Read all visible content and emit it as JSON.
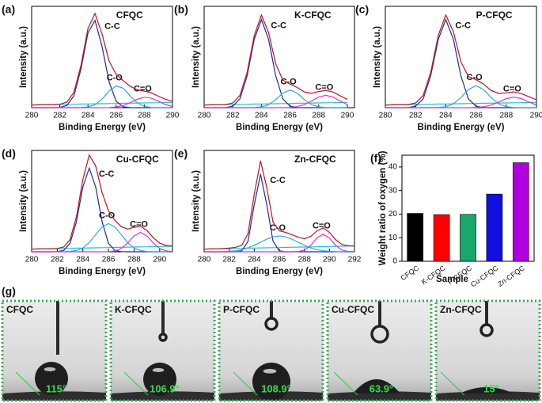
{
  "chart_data": [
    {
      "type": "line",
      "label": "(a)",
      "sample": "CFQC",
      "xlabel": "Binding Energy (eV)",
      "ylabel": "Intensity (a.u.)",
      "xlim": [
        280,
        290
      ],
      "ylim": [
        0,
        115
      ],
      "xticks": [
        280,
        282,
        284,
        286,
        288,
        290
      ],
      "x": [
        280,
        280.5,
        281,
        281.5,
        282,
        282.5,
        283,
        283.5,
        284,
        284.5,
        285,
        285.5,
        286,
        286.5,
        287,
        287.5,
        288,
        288.5,
        289,
        289.5,
        290
      ],
      "series": [
        {
          "color": "#19c3d6",
          "values": [
            3,
            3.2,
            3.3,
            3.5,
            3.6,
            3.8,
            3.9,
            4.1,
            4.2,
            4.4,
            4.5,
            4.7,
            4.8,
            5,
            5.1,
            5.3,
            5.4,
            5.6,
            5.7,
            5.9,
            6
          ]
        },
        {
          "name": "C-C",
          "color": "#1a2aa8",
          "values": [
            0,
            0,
            0,
            0,
            0.3,
            2.5,
            13.5,
            43.7,
            85,
            99,
            69.3,
            29.1,
            7.3,
            1.1,
            0.1,
            0,
            0,
            0,
            0,
            0,
            0
          ]
        },
        {
          "name": "C-O",
          "color": "#2fa8e8",
          "values": [
            0,
            0,
            0,
            0,
            0,
            0,
            0,
            0.1,
            0.8,
            3.4,
            9.7,
            18.9,
            24.8,
            22.1,
            13.3,
            5.4,
            1.5,
            0.3,
            0,
            0,
            0
          ]
        },
        {
          "name": "C=O",
          "color": "#e030d8",
          "values": [
            0,
            0,
            0,
            0,
            0,
            0,
            0,
            0,
            0,
            0,
            0,
            0.2,
            0.8,
            2.5,
            5.7,
            9.6,
            11.9,
            10.9,
            7.3,
            3.6,
            1.3
          ]
        },
        {
          "color": "#c81020",
          "values": [
            3,
            3.2,
            3.3,
            3.5,
            3.9,
            6.3,
            17.4,
            47.9,
            90,
            106.8,
            83.5,
            52.9,
            37.7,
            30.7,
            24.2,
            20.3,
            18.8,
            16.8,
            13,
            9.5,
            7.3
          ]
        }
      ]
    },
    {
      "type": "line",
      "label": "(b)",
      "sample": "K-CFQC",
      "xlabel": "Binding Energy (eV)",
      "ylabel": "Intensity (a.u.)",
      "xlim": [
        280,
        290.5
      ],
      "ylim": [
        0,
        115
      ],
      "xticks": [
        280,
        282,
        284,
        286,
        288,
        290
      ],
      "x": [
        280,
        280.5,
        281,
        281.5,
        282,
        282.5,
        283,
        283.5,
        284,
        284.5,
        285,
        285.5,
        286,
        286.5,
        287,
        287.5,
        288,
        288.5,
        289,
        289.5,
        290
      ],
      "series": [
        {
          "color": "#19c3d6",
          "values": [
            3,
            3.2,
            3.3,
            3.5,
            3.6,
            3.8,
            3.9,
            4.1,
            4.2,
            4.4,
            4.5,
            4.7,
            4.8,
            5,
            5.1,
            5.3,
            5.4,
            5.6,
            5.7,
            5.9,
            6
          ]
        },
        {
          "name": "C-C",
          "color": "#1a2aa8",
          "values": [
            0,
            0,
            0,
            0,
            1.7,
            10,
            36,
            77.5,
            100,
            77.5,
            36,
            10,
            1.7,
            0.2,
            0,
            0,
            0,
            0,
            0,
            0,
            0
          ]
        },
        {
          "name": "C-O",
          "color": "#2fa8e8",
          "values": [
            0,
            0,
            0,
            0,
            0,
            0,
            0,
            0.2,
            0.9,
            3.4,
            9.2,
            16.5,
            20,
            16.5,
            9.2,
            3.4,
            0.9,
            0.2,
            0,
            0,
            0
          ]
        },
        {
          "name": "C=O",
          "color": "#e030d8",
          "values": [
            0,
            0,
            0,
            0,
            0,
            0,
            0,
            0,
            0,
            0,
            0,
            0,
            0.3,
            1.2,
            3.5,
            7.6,
            12,
            14,
            12,
            7.6,
            3.5
          ]
        },
        {
          "color": "#c81020",
          "values": [
            3,
            3.2,
            3.3,
            3.5,
            5.3,
            13.8,
            39.9,
            81.8,
            105.1,
            85.3,
            49.7,
            31.2,
            26.8,
            22.9,
            17.8,
            16.3,
            18.3,
            19.8,
            17.7,
            13.5,
            9.5
          ]
        }
      ]
    },
    {
      "type": "line",
      "label": "(c)",
      "sample": "P-CFQC",
      "xlabel": "Binding Energy (eV)",
      "ylabel": "Intensity (a.u.)",
      "xlim": [
        280,
        290
      ],
      "ylim": [
        0,
        115
      ],
      "xticks": [
        280,
        282,
        284,
        286,
        288,
        290
      ],
      "x": [
        280,
        280.5,
        281,
        281.5,
        282,
        282.5,
        283,
        283.5,
        284,
        284.5,
        285,
        285.5,
        286,
        286.5,
        287,
        287.5,
        288,
        288.5,
        289,
        289.5,
        290
      ],
      "series": [
        {
          "color": "#19c3d6",
          "values": [
            3,
            3.2,
            3.3,
            3.5,
            3.6,
            3.8,
            3.9,
            4.1,
            4.2,
            4.4,
            4.5,
            4.7,
            4.8,
            5,
            5.1,
            5.3,
            5.4,
            5.6,
            5.7,
            5.9,
            6
          ]
        },
        {
          "name": "C-C",
          "color": "#1a2aa8",
          "values": [
            0,
            0,
            0,
            0,
            1.7,
            10,
            36,
            77.5,
            100,
            77.5,
            36,
            10,
            1.7,
            0.2,
            0,
            0,
            0,
            0,
            0,
            0,
            0
          ]
        },
        {
          "name": "C-O",
          "color": "#2fa8e8",
          "values": [
            0,
            0,
            0,
            0,
            0,
            0,
            0,
            0.3,
            1.1,
            4.3,
            11.5,
            20.6,
            25,
            20.6,
            11.5,
            4.3,
            1.1,
            0.3,
            0,
            0,
            0
          ]
        },
        {
          "name": "C=O",
          "color": "#e030d8",
          "values": [
            0,
            0,
            0,
            0,
            0,
            0,
            0,
            0,
            0,
            0,
            0,
            0,
            0.3,
            1,
            3,
            6.5,
            10.3,
            12,
            10.3,
            6.5,
            3
          ]
        },
        {
          "color": "#c81020",
          "values": [
            3,
            3.2,
            3.3,
            3.5,
            5.3,
            13.8,
            39.9,
            81.9,
            105.3,
            86.2,
            52,
            35.3,
            31.8,
            26.8,
            19.6,
            16.1,
            16.8,
            17.9,
            16,
            12.4,
            9
          ]
        }
      ]
    },
    {
      "type": "line",
      "label": "(d)",
      "sample": "Cu-CFQC",
      "xlabel": "Binding Energy (eV)",
      "ylabel": "Intensity (a.u.)",
      "xlim": [
        280,
        291
      ],
      "ylim": [
        0,
        115
      ],
      "xticks": [
        280,
        282,
        284,
        286,
        288,
        290
      ],
      "x": [
        280,
        280.5,
        281,
        281.5,
        282,
        282.5,
        283,
        283.5,
        284,
        284.5,
        285,
        285.5,
        286,
        286.5,
        287,
        287.5,
        288,
        288.5,
        289,
        289.5,
        290,
        290.5,
        291
      ],
      "series": [
        {
          "color": "#19c3d6",
          "values": [
            3,
            3.2,
            3.3,
            3.5,
            3.6,
            3.8,
            3.9,
            4.1,
            4.2,
            4.4,
            4.5,
            4.7,
            4.8,
            5,
            5.1,
            5.3,
            5.4,
            5.6,
            5.7,
            5.9,
            6,
            6.2,
            6.3
          ]
        },
        {
          "name": "C-C",
          "color": "#1a2aa8",
          "values": [
            0,
            0,
            0,
            0,
            0.2,
            1.6,
            9.5,
            34.2,
            73.6,
            95,
            73.6,
            34.2,
            9.5,
            1.6,
            0.2,
            0,
            0,
            0,
            0,
            0,
            0,
            0,
            0
          ]
        },
        {
          "name": "C-O",
          "color": "#2fa8e8",
          "values": [
            0,
            0,
            0,
            0,
            0,
            0,
            0.4,
            1.4,
            4.3,
            10.4,
            19.4,
            28.2,
            32,
            28.2,
            19.4,
            10.4,
            4.3,
            1.4,
            0.4,
            0,
            0,
            0,
            0
          ]
        },
        {
          "name": "C=O",
          "color": "#e030d8",
          "values": [
            0,
            0,
            0,
            0,
            0,
            0,
            0,
            0,
            0,
            0,
            0,
            0,
            0.2,
            1,
            3.8,
            10.1,
            18.1,
            22,
            18.1,
            10.1,
            3.8,
            1,
            0.2
          ]
        },
        {
          "color": "#c81020",
          "values": [
            3,
            3.2,
            3.3,
            3.5,
            3.8,
            5.4,
            13.8,
            39.7,
            82.1,
            109.8,
            97.5,
            67.1,
            46.5,
            35.8,
            28.5,
            25.8,
            27.8,
            29,
            24.2,
            16,
            9.8,
            7.2,
            6.5
          ]
        }
      ]
    },
    {
      "type": "line",
      "label": "(e)",
      "sample": "Zn-CFQC",
      "xlabel": "Binding Energy (eV)",
      "ylabel": "Intensity (a.u.)",
      "xlim": [
        280,
        292
      ],
      "ylim": [
        0,
        115
      ],
      "xticks": [
        280,
        282,
        284,
        286,
        288,
        290,
        292
      ],
      "x": [
        280,
        280.5,
        281,
        281.5,
        282,
        282.5,
        283,
        283.5,
        284,
        284.5,
        285,
        285.5,
        286,
        286.5,
        287,
        287.5,
        288,
        288.5,
        289,
        289.5,
        290,
        290.5,
        291,
        291.5,
        292
      ],
      "series": [
        {
          "color": "#19c3d6",
          "values": [
            3,
            3.2,
            3.3,
            3.5,
            3.6,
            3.8,
            3.9,
            4.1,
            4.2,
            4.4,
            4.5,
            4.7,
            4.8,
            5,
            5.1,
            5.3,
            5.4,
            5.6,
            5.7,
            5.9,
            6,
            6.2,
            6.3,
            6.5,
            6.6
          ]
        },
        {
          "name": "C-C",
          "color": "#1a2aa8",
          "values": [
            0,
            0,
            0,
            0,
            0,
            0,
            1,
            11.9,
            53.4,
            88,
            53.4,
            11.9,
            1,
            0,
            0,
            0,
            0,
            0,
            0,
            0,
            0,
            0,
            0,
            0,
            0
          ]
        },
        {
          "name": "C-O",
          "color": "#2fa8e8",
          "values": [
            0,
            0,
            0,
            0.2,
            0.5,
            1.2,
            2.4,
            4.5,
            7.4,
            10.9,
            14.4,
            17,
            18,
            17,
            14.4,
            10.9,
            7.4,
            4.5,
            2.4,
            1.2,
            0.5,
            0.2,
            0,
            0,
            0
          ]
        },
        {
          "name": "C=O",
          "color": "#e030d8",
          "values": [
            0,
            0,
            0,
            0,
            0,
            0,
            0,
            0,
            0,
            0,
            0,
            0,
            0,
            0,
            0,
            0.3,
            2,
            7.2,
            15.5,
            20,
            15.5,
            7.2,
            2,
            0.3,
            0
          ]
        },
        {
          "color": "#c81020",
          "values": [
            3,
            3.2,
            3.3,
            3.7,
            4.1,
            5,
            7.3,
            20.5,
            65,
            103.3,
            72.3,
            33.6,
            23.8,
            22,
            19.5,
            16.5,
            14.8,
            17.3,
            23.6,
            27.1,
            22,
            13.6,
            8.3,
            6.8,
            6.6
          ]
        }
      ]
    },
    {
      "type": "bar",
      "label": "(f)",
      "xlabel": "Sample",
      "ylabel": "Weight ratio of oxygen (%)",
      "categories": [
        "CFQC",
        "K-CFQC",
        "P-CFQC",
        "Cu-CFQC",
        "Zn-CFQC"
      ],
      "values": [
        20.3,
        19.8,
        19.9,
        28.5,
        41.8
      ],
      "colors": [
        "#000000",
        "#ff0000",
        "#1aa86a",
        "#1010e0",
        "#b000e0"
      ],
      "ylim": [
        0,
        45
      ],
      "yticks": [
        0,
        10,
        20,
        30,
        40
      ]
    }
  ],
  "contact_angle": {
    "label": "(g)",
    "panels": [
      {
        "sample": "CFQC",
        "angle": "115°"
      },
      {
        "sample": "K-CFQC",
        "angle": "106.9°"
      },
      {
        "sample": "P-CFQC",
        "angle": "108.9°"
      },
      {
        "sample": "Cu-CFQC",
        "angle": "63.9°"
      },
      {
        "sample": "Zn-CFQC",
        "angle": "15°"
      }
    ]
  }
}
